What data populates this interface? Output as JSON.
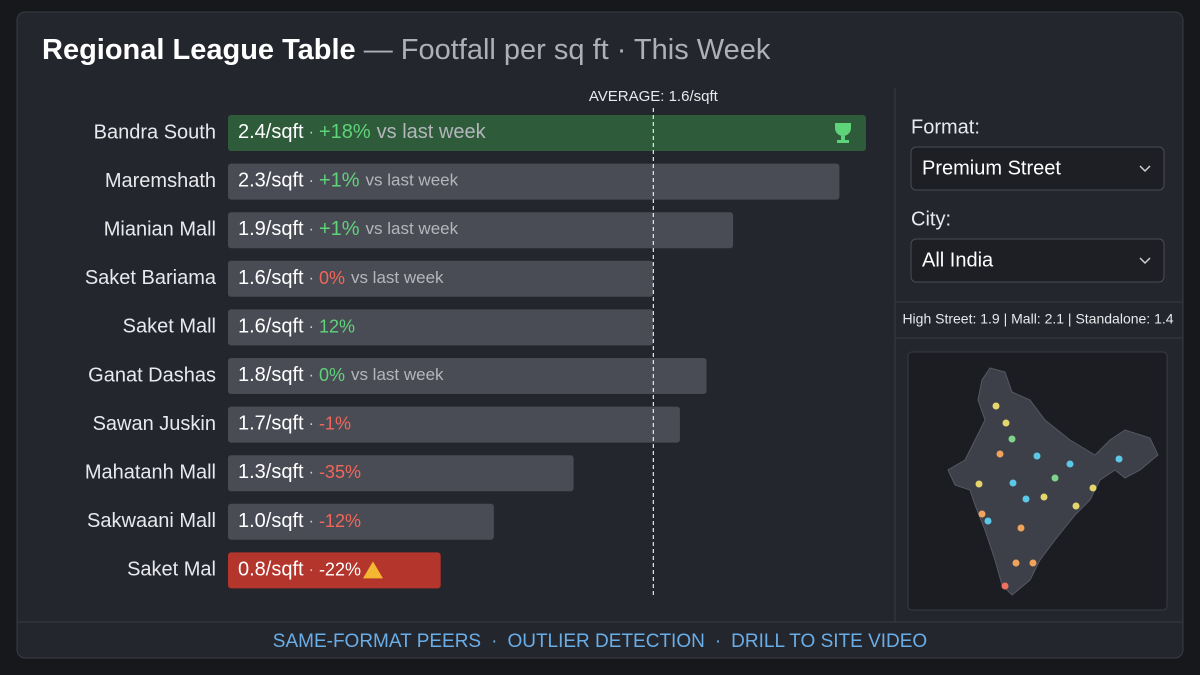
{
  "chart_data": {
    "type": "bar",
    "title": "Regional League Table",
    "subtitle": "— Footfall per sq ft · This Week",
    "categories": [
      "Bandra South",
      "Maremshath",
      "Mianian Mall",
      "Saket Bariama",
      "Saket Mall",
      "Ganat Dashas",
      "Sawan Juskin",
      "Mahatanh Mall",
      "Sakwaani Mall",
      "Saket Mal"
    ],
    "values": [
      2.4,
      2.3,
      1.9,
      1.6,
      1.6,
      1.8,
      1.7,
      1.3,
      1.0,
      0.8
    ],
    "value_labels": [
      "2.4/sqft",
      "2.3/sqft",
      "1.9/sqft",
      "1.6/sqft",
      "1.6/sqft",
      "1.8/sqft",
      "1.7/sqft",
      "1.3/sqft",
      "1.0/sqft",
      "0.8/sqft"
    ],
    "changes": [
      "+18%",
      "+1%",
      "+1%",
      "0%",
      "12%",
      "0%",
      "-1%",
      "-35%",
      "-12%",
      "-22%"
    ],
    "change_suffixes": [
      "vs last week",
      "vs last week",
      "vs last week",
      "vs last week",
      null,
      "vs last week",
      null,
      null,
      null,
      null
    ],
    "change_colors": [
      "#5fd37a",
      "#5fd37a",
      "#5fd37a",
      "#f0675a",
      "#5fd37a",
      "#5fd37a",
      "#f0675a",
      "#f0675a",
      "#f0675a",
      "#ffffff"
    ],
    "colors": [
      "#2e5b39",
      "#4a4c55",
      "#4a4c55",
      "#4a4c55",
      "#4a4c55",
      "#4a4c55",
      "#4a4c55",
      "#4a4c55",
      "#4a4c55",
      "#b3352c"
    ],
    "xlim": [
      0,
      2.4
    ],
    "average": 1.6,
    "average_label": "AVERAGE: 1.6/sqft"
  },
  "filters": {
    "format_label": "Format:",
    "format_value": "Premium Street",
    "city_label": "City:",
    "city_value": "All India"
  },
  "summary": "High Street: 1.9 | Mall: 2.1 | Standalone: 1.4",
  "footer": {
    "links": [
      "SAME-FORMAT PEERS",
      "OUTLIER DETECTION",
      "DRILL TO SITE VIDEO"
    ],
    "separator": "·"
  }
}
